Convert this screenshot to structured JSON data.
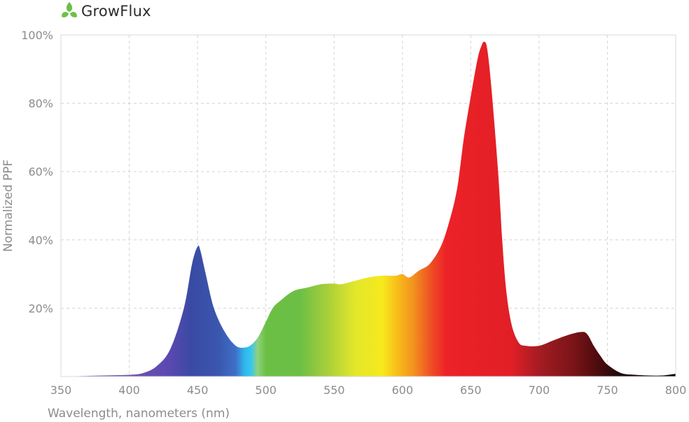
{
  "brand": {
    "name": "GrowFlux",
    "logo_icon": "leaf-sprout-icon",
    "logo_color": "#6cc04a"
  },
  "chart_data": {
    "type": "area",
    "title": "",
    "xlabel": "Wavelength, nanometers (nm)",
    "ylabel": "Normalized PPF",
    "xlim": [
      350,
      800
    ],
    "ylim": [
      0,
      100
    ],
    "xticks": [
      350,
      400,
      450,
      500,
      550,
      600,
      650,
      700,
      750,
      800
    ],
    "xtick_labels": [
      "350",
      "400",
      "450",
      "500",
      "550",
      "600",
      "650",
      "700",
      "750",
      "800"
    ],
    "yticks": [
      20,
      40,
      60,
      80,
      100
    ],
    "ytick_labels": [
      "20%",
      "40%",
      "60%",
      "80%",
      "100%"
    ],
    "grid": true,
    "legend": "none",
    "fill": "visible-spectrum-gradient",
    "series": [
      {
        "x": [
          350,
          380,
          400,
          410,
          420,
          430,
          440,
          446,
          450,
          452,
          456,
          462,
          470,
          478,
          485,
          490,
          495,
          500,
          505,
          510,
          520,
          530,
          540,
          550,
          555,
          565,
          575,
          585,
          595,
          600,
          605,
          612,
          620,
          628,
          634,
          640,
          645,
          650,
          655,
          658,
          660,
          662,
          665,
          670,
          673,
          676,
          680,
          685,
          690,
          700,
          710,
          720,
          730,
          735,
          740,
          745,
          750,
          760,
          770,
          780,
          790,
          800
        ],
        "y": [
          0,
          0.3,
          0.5,
          1,
          3,
          8,
          20,
          33,
          38,
          37,
          30,
          20,
          13,
          9,
          8.5,
          9.5,
          12,
          16,
          20,
          22,
          25,
          26,
          27,
          27.2,
          27,
          28,
          29,
          29.5,
          29.5,
          30,
          29,
          31,
          33,
          38,
          45,
          55,
          70,
          82,
          93,
          97,
          98,
          96,
          85,
          60,
          40,
          25,
          15,
          10,
          9,
          9,
          10.5,
          12,
          13,
          12.5,
          9,
          6,
          3.5,
          1,
          0.5,
          0.3,
          0.3,
          0.8
        ]
      }
    ]
  }
}
